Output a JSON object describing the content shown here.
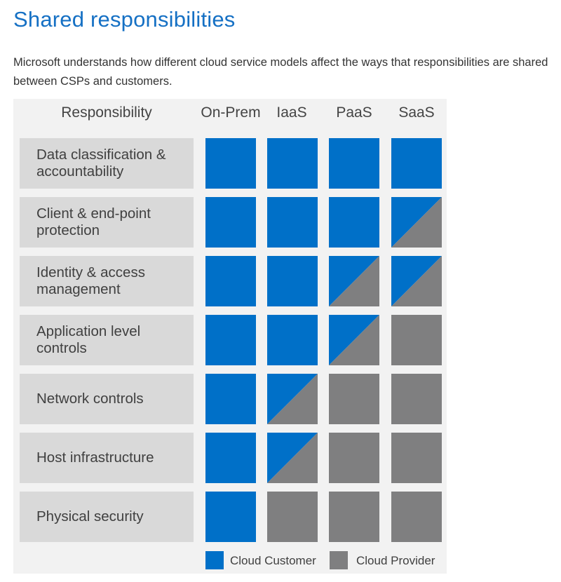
{
  "page": {
    "title": "Shared responsibilities",
    "intro": "Microsoft understands how different cloud service models affect the ways that responsibilities are shared between CSPs and customers."
  },
  "colors": {
    "customer": "#0070c8",
    "provider": "#7f7f80"
  },
  "matrix": {
    "header": "Responsibility",
    "columns": [
      "On-Prem",
      "IaaS",
      "PaaS",
      "SaaS"
    ],
    "rows": [
      {
        "label": "Data classification & accountability",
        "cells": [
          "customer",
          "customer",
          "customer",
          "customer"
        ]
      },
      {
        "label": "Client & end-point protection",
        "cells": [
          "customer",
          "customer",
          "customer",
          "shared"
        ]
      },
      {
        "label": "Identity & access management",
        "cells": [
          "customer",
          "customer",
          "shared",
          "shared"
        ]
      },
      {
        "label": "Application level controls",
        "cells": [
          "customer",
          "customer",
          "shared",
          "provider"
        ]
      },
      {
        "label": "Network controls",
        "cells": [
          "customer",
          "shared",
          "provider",
          "provider"
        ]
      },
      {
        "label": "Host infrastructure",
        "cells": [
          "customer",
          "shared",
          "provider",
          "provider"
        ]
      },
      {
        "label": "Physical security",
        "cells": [
          "customer",
          "provider",
          "provider",
          "provider"
        ]
      }
    ]
  },
  "legend": {
    "customer_label": "Cloud Customer",
    "provider_label": "Cloud Provider"
  }
}
